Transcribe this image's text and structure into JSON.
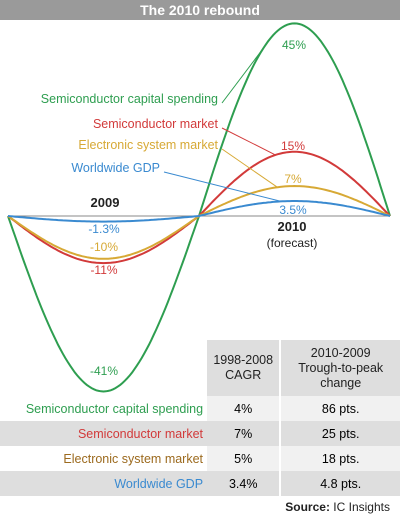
{
  "title": "The 2010 rebound",
  "chart_data": {
    "type": "line",
    "x": [
      "2009",
      "2010"
    ],
    "x_sublabel": "(forecast)",
    "series": [
      {
        "name": "Semiconductor capital spending",
        "color": "#2e9e50",
        "values": [
          -41,
          45
        ],
        "labels": [
          "-41%",
          "45%"
        ]
      },
      {
        "name": "Semiconductor market",
        "color": "#d23a3a",
        "values": [
          -11,
          15
        ],
        "labels": [
          "-11%",
          "15%"
        ]
      },
      {
        "name": "Electronic system market",
        "color": "#d7a935",
        "values": [
          -10,
          7
        ],
        "labels": [
          "-10%",
          "7%"
        ]
      },
      {
        "name": "Worldwide GDP",
        "color": "#3a8ad0",
        "values": [
          -1.3,
          3.5
        ],
        "labels": [
          "-1.3%",
          "3.5%"
        ]
      }
    ]
  },
  "table": {
    "col1_header": [
      "1998-2008",
      "CAGR"
    ],
    "col2_header": [
      "2010-2009",
      "Trough-to-peak",
      "change"
    ],
    "rows": [
      {
        "label": "Semiconductor capital spending",
        "cagr": "4%",
        "change": "86 pts.",
        "color": "#2e9e50"
      },
      {
        "label": "Semiconductor market",
        "cagr": "7%",
        "change": "25 pts.",
        "color": "#d23a3a"
      },
      {
        "label": "Electronic system market",
        "cagr": "5%",
        "change": "18 pts.",
        "color": "#9c6a1e"
      },
      {
        "label": "Worldwide GDP",
        "cagr": "3.4%",
        "change": "4.8 pts.",
        "color": "#3a8ad0"
      }
    ]
  },
  "source_label": "Source:",
  "source_text": "IC Insights"
}
